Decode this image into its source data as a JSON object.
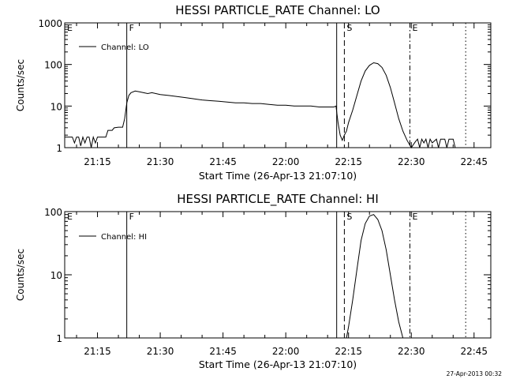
{
  "chart_data": [
    {
      "type": "line",
      "title": "HESSI PARTICLE_RATE Channel: LO",
      "xlabel": "Start Time (26-Apr-13 21:07:10)",
      "ylabel": "Counts/sec",
      "y_scale": "log",
      "ylim": [
        1,
        1000
      ],
      "xlim": [
        "21:07:10",
        "22:49:00"
      ],
      "x_ticks": [
        "21:15",
        "21:30",
        "21:45",
        "22:00",
        "22:15",
        "22:30",
        "22:45"
      ],
      "y_ticks": [
        "1",
        "10",
        "100",
        "1000"
      ],
      "legend": "top-left",
      "grid": false,
      "series": [
        {
          "name": "Channel: LO",
          "points": [
            [
              "21:07:10",
              1.8
            ],
            [
              "21:09:00",
              1.8
            ],
            [
              "21:09:30",
              1.3
            ],
            [
              "21:10:00",
              1.8
            ],
            [
              "21:10:30",
              1.8
            ],
            [
              "21:11:00",
              1.1
            ],
            [
              "21:11:30",
              1.8
            ],
            [
              "21:12:00",
              1.3
            ],
            [
              "21:12:30",
              1.8
            ],
            [
              "21:13:00",
              1.8
            ],
            [
              "21:13:30",
              1.0
            ],
            [
              "21:14:00",
              1.8
            ],
            [
              "21:14:30",
              1.3
            ],
            [
              "21:15:00",
              1.8
            ],
            [
              "21:16:00",
              1.8
            ],
            [
              "21:17:00",
              1.8
            ],
            [
              "21:17:30",
              2.6
            ],
            [
              "21:18:30",
              2.6
            ],
            [
              "21:19:00",
              3.0
            ],
            [
              "21:20:00",
              3.1
            ],
            [
              "21:21:00",
              3.1
            ],
            [
              "21:21:30",
              5.0
            ],
            [
              "21:22:00",
              12.0
            ],
            [
              "21:22:30",
              18.0
            ],
            [
              "21:23:00",
              21.0
            ],
            [
              "21:24:00",
              23.0
            ],
            [
              "21:25:00",
              22.0
            ],
            [
              "21:26:00",
              21.0
            ],
            [
              "21:27:00",
              20.0
            ],
            [
              "21:28:00",
              21.0
            ],
            [
              "21:30:00",
              19.0
            ],
            [
              "21:32:00",
              18.0
            ],
            [
              "21:34:00",
              17.0
            ],
            [
              "21:36:00",
              16.0
            ],
            [
              "21:38:00",
              15.0
            ],
            [
              "21:40:00",
              14.0
            ],
            [
              "21:42:00",
              13.5
            ],
            [
              "21:44:00",
              13.0
            ],
            [
              "21:46:00",
              12.5
            ],
            [
              "21:48:00",
              12.0
            ],
            [
              "21:50:00",
              12.0
            ],
            [
              "21:52:00",
              11.5
            ],
            [
              "21:54:00",
              11.5
            ],
            [
              "21:56:00",
              11.0
            ],
            [
              "21:58:00",
              10.5
            ],
            [
              "22:00:00",
              10.5
            ],
            [
              "22:02:00",
              10.0
            ],
            [
              "22:04:00",
              10.0
            ],
            [
              "22:06:00",
              10.0
            ],
            [
              "22:08:00",
              9.5
            ],
            [
              "22:10:00",
              9.5
            ],
            [
              "22:11:30",
              9.5
            ],
            [
              "22:12:00",
              10.0
            ],
            [
              "22:12:30",
              4.0
            ],
            [
              "22:13:00",
              2.0
            ],
            [
              "22:13:30",
              1.5
            ],
            [
              "22:14:00",
              2.0
            ],
            [
              "22:14:30",
              2.5
            ],
            [
              "22:15:00",
              4.0
            ],
            [
              "22:16:00",
              8.0
            ],
            [
              "22:17:00",
              18.0
            ],
            [
              "22:18:00",
              40.0
            ],
            [
              "22:19:00",
              70.0
            ],
            [
              "22:20:00",
              95.0
            ],
            [
              "22:21:00",
              110.0
            ],
            [
              "22:22:00",
              105.0
            ],
            [
              "22:23:00",
              85.0
            ],
            [
              "22:24:00",
              55.0
            ],
            [
              "22:25:00",
              28.0
            ],
            [
              "22:26:00",
              12.0
            ],
            [
              "22:27:00",
              5.0
            ],
            [
              "22:28:00",
              2.5
            ],
            [
              "22:29:00",
              1.5
            ],
            [
              "22:30:00",
              1.0
            ],
            [
              "22:31:00",
              1.4
            ],
            [
              "22:31:30",
              1.6
            ],
            [
              "22:32:00",
              1.0
            ],
            [
              "22:32:30",
              1.6
            ],
            [
              "22:33:00",
              1.3
            ],
            [
              "22:33:30",
              1.6
            ],
            [
              "22:34:00",
              1.0
            ],
            [
              "22:34:30",
              1.6
            ],
            [
              "22:35:00",
              1.3
            ],
            [
              "22:36:00",
              1.6
            ],
            [
              "22:36:30",
              1.0
            ],
            [
              "22:37:00",
              1.6
            ],
            [
              "22:38:00",
              1.6
            ],
            [
              "22:38:30",
              1.0
            ],
            [
              "22:39:00",
              1.6
            ],
            [
              "22:40:00",
              1.6
            ],
            [
              "22:40:30",
              1.0
            ]
          ]
        }
      ],
      "markers": [
        {
          "label": "E",
          "time": "21:07:10",
          "style": "solid"
        },
        {
          "label": "F",
          "time": "21:22:00",
          "style": "solid"
        },
        {
          "label": "",
          "time": "22:12:10",
          "style": "solid"
        },
        {
          "label": "S",
          "time": "22:14:00",
          "style": "dashed"
        },
        {
          "label": "E",
          "time": "22:29:40",
          "style": "dash-dot"
        },
        {
          "label": "",
          "time": "22:43:00",
          "style": "dotted"
        }
      ]
    },
    {
      "type": "line",
      "title": "HESSI PARTICLE_RATE Channel: HI",
      "xlabel": "Start Time (26-Apr-13 21:07:10)",
      "ylabel": "Counts/sec",
      "y_scale": "log",
      "ylim": [
        1,
        100
      ],
      "xlim": [
        "21:07:10",
        "22:49:00"
      ],
      "x_ticks": [
        "21:15",
        "21:30",
        "21:45",
        "22:00",
        "22:15",
        "22:30",
        "22:45"
      ],
      "y_ticks": [
        "1",
        "10",
        "100"
      ],
      "legend": "top-left",
      "grid": false,
      "series": [
        {
          "name": "Channel: HI",
          "points": [
            [
              "22:14:30",
              1.0
            ],
            [
              "22:15:00",
              1.5
            ],
            [
              "22:16:00",
              4.0
            ],
            [
              "22:17:00",
              12.0
            ],
            [
              "22:18:00",
              35.0
            ],
            [
              "22:19:00",
              65.0
            ],
            [
              "22:20:00",
              85.0
            ],
            [
              "22:21:00",
              90.0
            ],
            [
              "22:22:00",
              75.0
            ],
            [
              "22:23:00",
              50.0
            ],
            [
              "22:24:00",
              25.0
            ],
            [
              "22:25:00",
              10.0
            ],
            [
              "22:26:00",
              4.0
            ],
            [
              "22:27:00",
              1.8
            ],
            [
              "22:28:00",
              1.0
            ]
          ]
        }
      ],
      "markers": [
        {
          "label": "E",
          "time": "21:07:10",
          "style": "solid"
        },
        {
          "label": "F",
          "time": "21:22:00",
          "style": "solid"
        },
        {
          "label": "",
          "time": "22:12:10",
          "style": "solid"
        },
        {
          "label": "S",
          "time": "22:14:00",
          "style": "dashed"
        },
        {
          "label": "E",
          "time": "22:29:40",
          "style": "dash-dot"
        },
        {
          "label": "",
          "time": "22:43:00",
          "style": "dotted"
        }
      ]
    }
  ],
  "footer": {
    "timestamp": "27-Apr-2013 00:32"
  }
}
